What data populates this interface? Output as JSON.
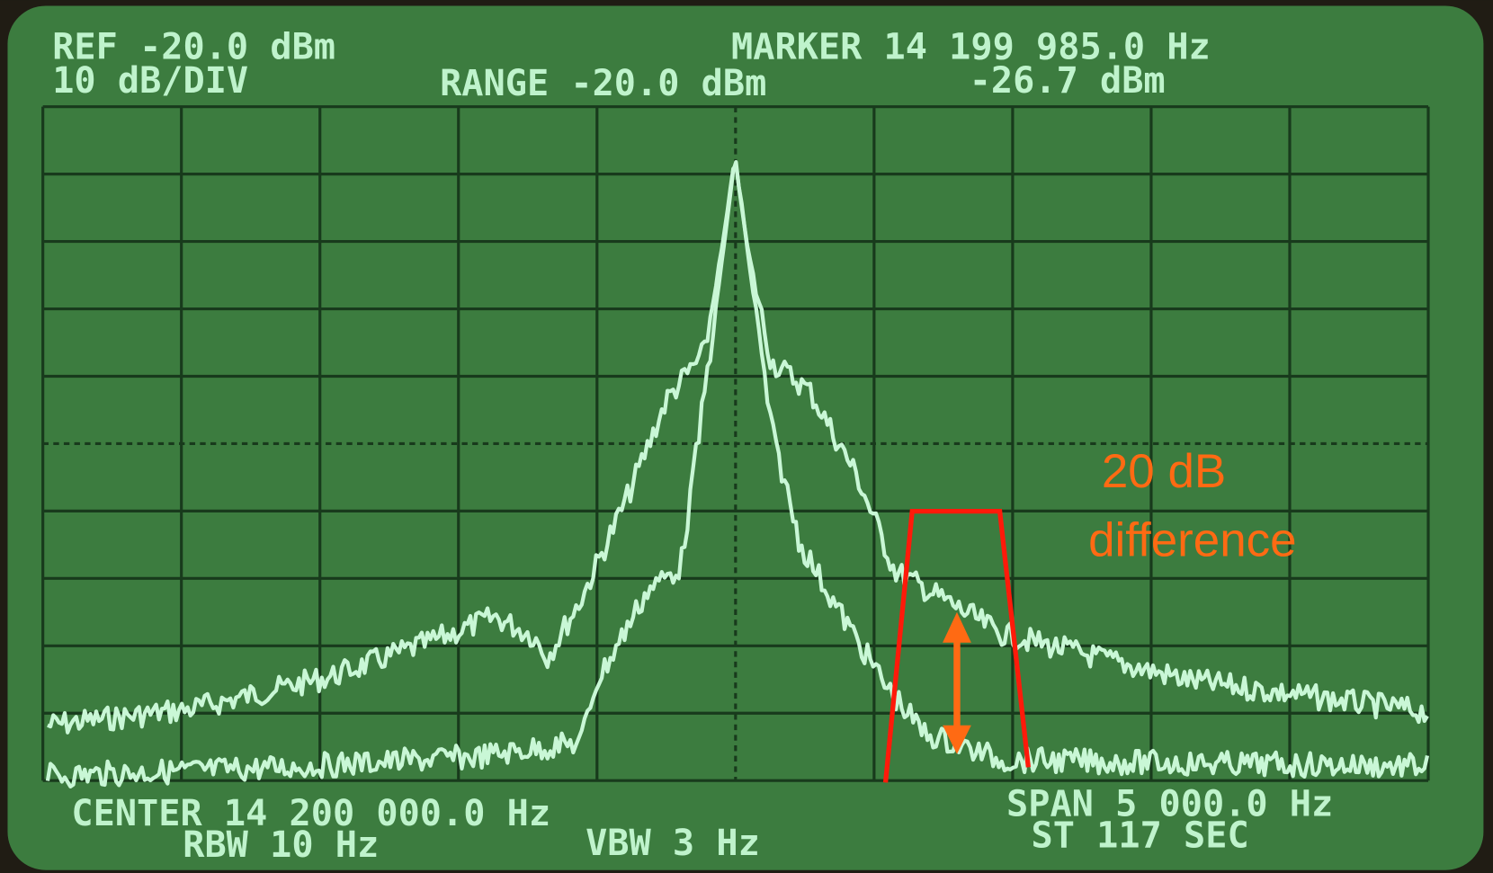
{
  "header": {
    "ref": "REF -20.0 dBm",
    "scale": "10 dB/DIV",
    "range": "RANGE -20.0 dBm",
    "marker": "MARKER 14 199 985.0 Hz",
    "marker_level": "-26.7 dBm"
  },
  "footer": {
    "center": "CENTER 14 200 000.0 Hz",
    "rbw": "RBW 10 Hz",
    "vbw": "VBW 3 Hz",
    "span": "SPAN 5 000.0 Hz",
    "sweep": "ST 117 SEC"
  },
  "annotation": {
    "line1": "20 dB",
    "line2": "difference"
  }
}
